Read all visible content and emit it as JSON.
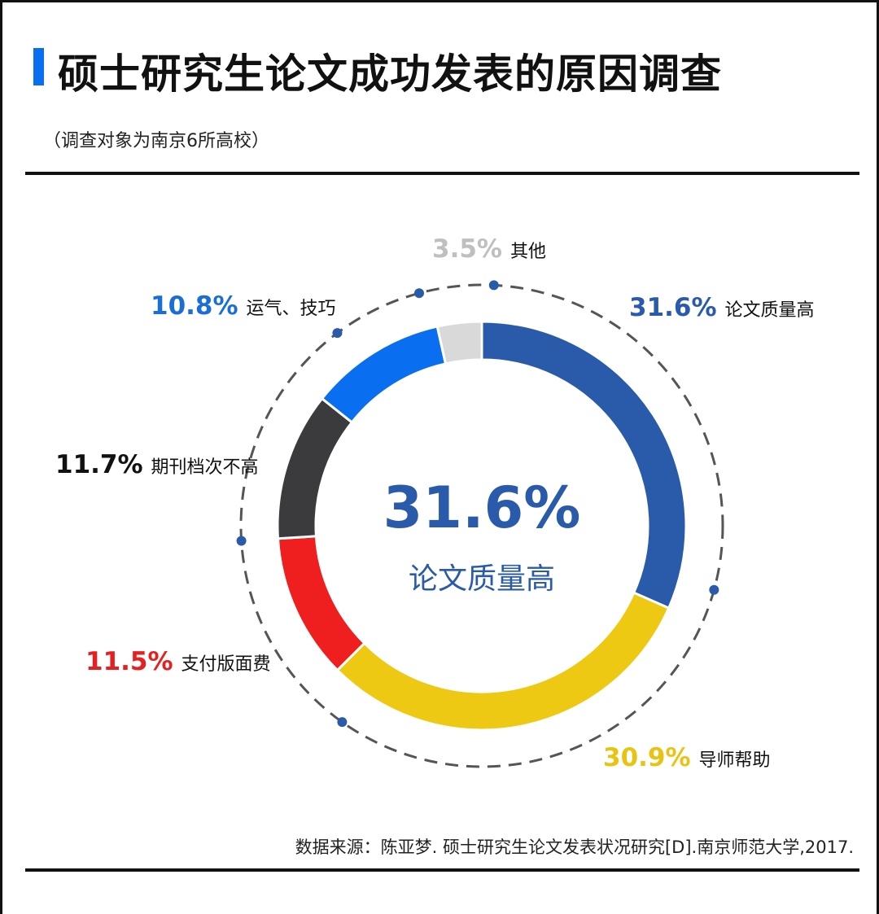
{
  "title": "硕士研究生论文成功发表的原因调查",
  "subtitle": "（调查对象为南京6所高校）",
  "source": "数据来源：陈亚梦. 硕士研究生论文发表状况研究[D].南京师范大学,2017.",
  "chart_data": {
    "type": "pie",
    "donut": true,
    "center_value": "31.6%",
    "center_label": "论文质量高",
    "slices": [
      {
        "label": "论文质量高",
        "value": 31.6,
        "value_label": "31.6%",
        "color": "#2a5bab"
      },
      {
        "label": "导师帮助",
        "value": 30.9,
        "value_label": "30.9%",
        "color": "#eec913"
      },
      {
        "label": "支付版面费",
        "value": 11.5,
        "value_label": "11.5%",
        "color": "#ef1f1f"
      },
      {
        "label": "期刊档次不高",
        "value": 11.7,
        "value_label": "11.7%",
        "color": "#3b3b3d"
      },
      {
        "label": "运气、技巧",
        "value": 10.8,
        "value_label": "10.8%",
        "color": "#0a6ef0"
      },
      {
        "label": "其他",
        "value": 3.5,
        "value_label": "3.5%",
        "color": "#d9d9d9"
      }
    ]
  },
  "label_colors": [
    "#2a5bab",
    "#e8c312",
    "#e62020",
    "#111111",
    "#1a6fd6",
    "#bfbfbf"
  ]
}
